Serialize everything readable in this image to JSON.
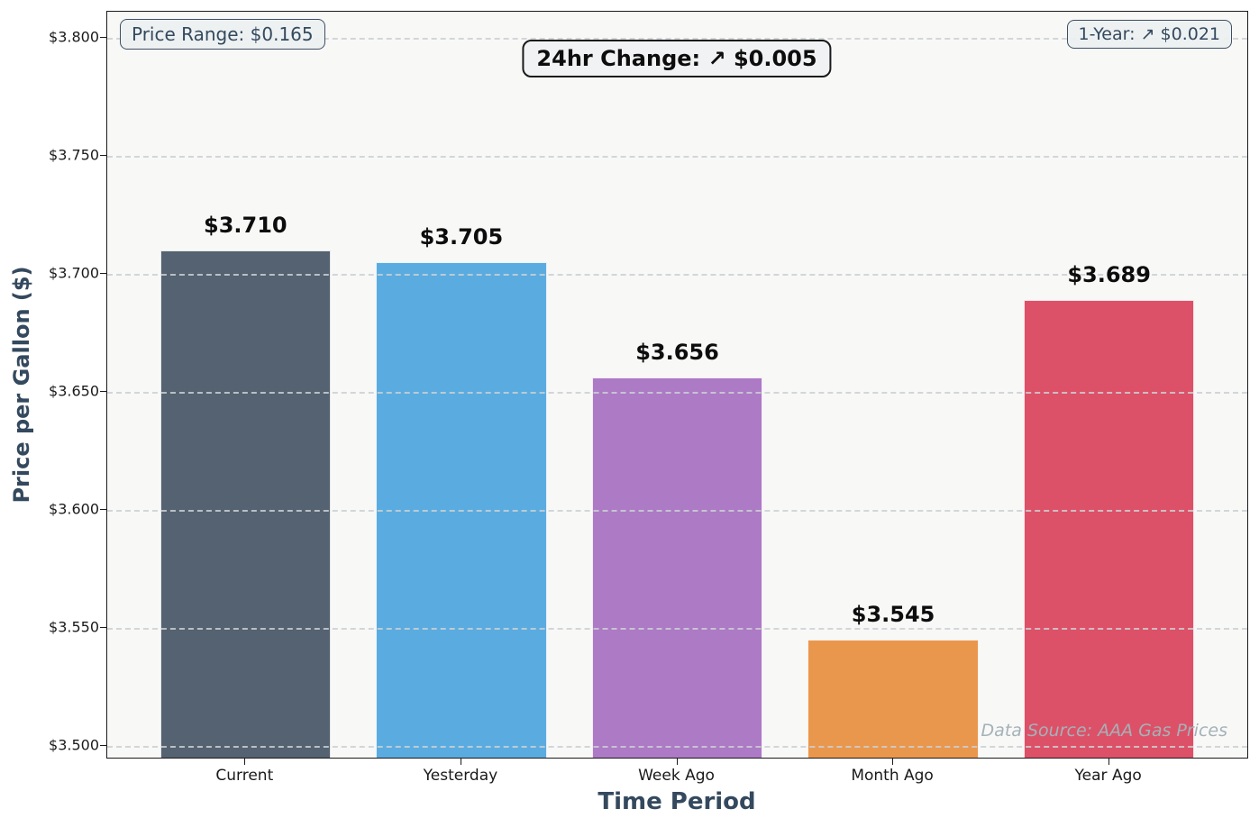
{
  "chart_data": {
    "type": "bar",
    "categories": [
      "Current",
      "Yesterday",
      "Week Ago",
      "Month Ago",
      "Year Ago"
    ],
    "values": [
      3.71,
      3.705,
      3.656,
      3.545,
      3.689
    ],
    "value_labels": [
      "$3.710",
      "$3.705",
      "$3.656",
      "$3.545",
      "$3.689"
    ],
    "bar_colors": [
      "#546271",
      "#5AACE0",
      "#AD7AC5",
      "#EA974E",
      "#DD5168"
    ],
    "xlabel": "Time Period",
    "ylabel": "Price per Gallon ($)",
    "ylim": [
      3.495,
      3.811
    ],
    "yticks": [
      3.5,
      3.55,
      3.6,
      3.65,
      3.7,
      3.75,
      3.8
    ],
    "ytick_labels": [
      "$3.500",
      "$3.550",
      "$3.600",
      "$3.650",
      "$3.700",
      "$3.750",
      "$3.800"
    ],
    "grid": "horizontal-dashed",
    "legend": "none"
  },
  "annotations": {
    "price_range": "Price Range: $0.165",
    "change_24hr": "24hr Change: ↗ $0.005",
    "one_year": "1-Year: ↗ $0.021",
    "data_source": "Data Source: AAA Gas Prices"
  },
  "colors": {
    "plot_background": "#f8f8f7",
    "figure_background": "#ffffff",
    "spine": "#1a1a1a",
    "gridline": "#cbd0d4",
    "axis_title": "#34495e",
    "badge_text": "#34495e",
    "value_label": "#0d0d0d",
    "data_source_text": "#a4b2b8"
  }
}
